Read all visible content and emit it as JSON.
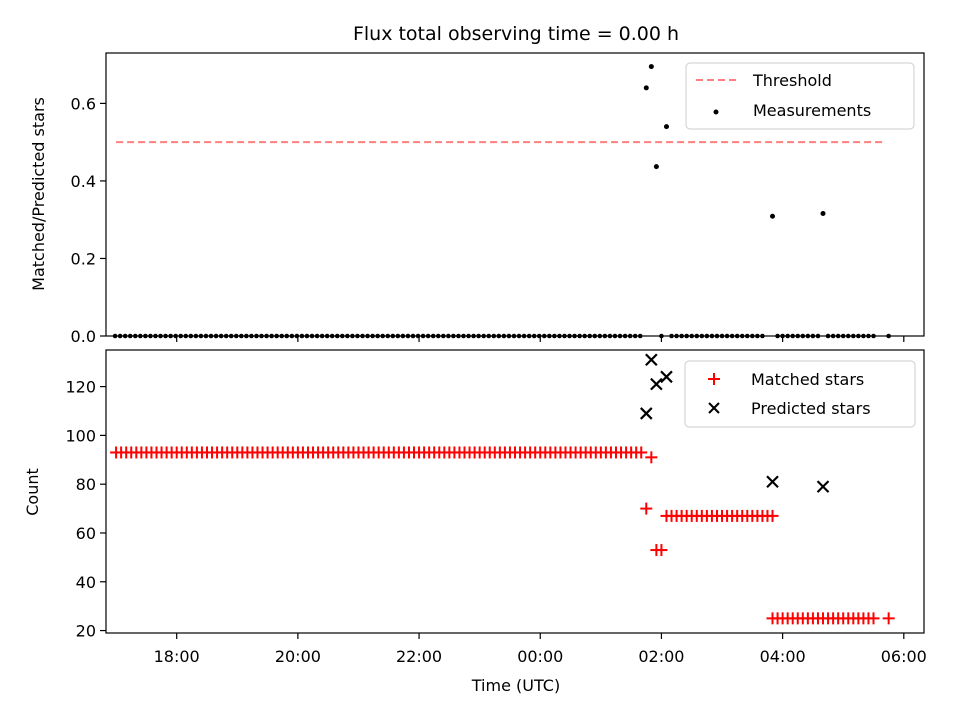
{
  "chart_data": [
    {
      "type": "scatter",
      "title": "Flux total observing time = 0.00 h",
      "xlabel": "",
      "ylabel": "Matched/Predicted stars",
      "xlim": [
        "16:50",
        "06:20"
      ],
      "ylim": [
        0,
        0.73
      ],
      "yticks": [
        0,
        0.2,
        0.4,
        0.6
      ],
      "ytick_labels": [
        "0.0",
        "0.2",
        "0.4",
        "0.6"
      ],
      "xticks": [
        "18:00",
        "20:00",
        "22:00",
        "00:00",
        "02:00",
        "04:00",
        "06:00"
      ],
      "legend": {
        "position": "top-right",
        "entries": [
          "Threshold",
          "Measurements"
        ]
      },
      "series": [
        {
          "name": "Threshold",
          "style": "dashed-line",
          "color": "#ff7f7f",
          "points": [
            {
              "x": "17:00",
              "y": 0.5
            },
            {
              "x": "05:40",
              "y": 0.5
            }
          ]
        },
        {
          "name": "Measurements",
          "style": "dot",
          "color": "#000000",
          "points": [
            {
              "x": "01:45",
              "y": 0.64
            },
            {
              "x": "01:50",
              "y": 0.695
            },
            {
              "x": "01:55",
              "y": 0.437
            },
            {
              "x": "02:05",
              "y": 0.54
            },
            {
              "x": "03:50",
              "y": 0.309
            },
            {
              "x": "04:40",
              "y": 0.316
            }
          ],
          "zero_runs": [
            {
              "start": "16:59",
              "end": "01:40",
              "step_minutes": 5
            },
            {
              "start": "02:00",
              "end": "02:00",
              "step_minutes": 5
            },
            {
              "start": "02:10",
              "end": "03:40",
              "step_minutes": 5
            },
            {
              "start": "03:55",
              "end": "04:35",
              "step_minutes": 5
            },
            {
              "start": "04:45",
              "end": "05:30",
              "step_minutes": 5
            },
            {
              "start": "05:45",
              "end": "05:45",
              "step_minutes": 5
            }
          ]
        }
      ]
    },
    {
      "type": "scatter",
      "title": "",
      "xlabel": "Time (UTC)",
      "ylabel": "Count",
      "xlim": [
        "16:50",
        "06:20"
      ],
      "ylim": [
        19,
        135
      ],
      "yticks": [
        20,
        40,
        60,
        80,
        100,
        120
      ],
      "ytick_labels": [
        "20",
        "40",
        "60",
        "80",
        "100",
        "120"
      ],
      "xticks": [
        "18:00",
        "20:00",
        "22:00",
        "00:00",
        "02:00",
        "04:00",
        "06:00"
      ],
      "legend": {
        "position": "top-right",
        "entries": [
          "Matched stars",
          "Predicted stars"
        ]
      },
      "series": [
        {
          "name": "Matched stars",
          "style": "plus",
          "color": "#ff0000",
          "points": [
            {
              "x": "01:45",
              "y": 70
            },
            {
              "x": "01:50",
              "y": 91
            },
            {
              "x": "01:55",
              "y": 53
            },
            {
              "x": "02:00",
              "y": 53
            }
          ],
          "runs": [
            {
              "start": "17:00",
              "end": "01:40",
              "step_minutes": 5,
              "y": 93
            },
            {
              "start": "02:05",
              "end": "03:50",
              "step_minutes": 5,
              "y": 67
            },
            {
              "start": "03:50",
              "end": "05:30",
              "step_minutes": 5,
              "y": 25
            },
            {
              "start": "05:45",
              "end": "05:45",
              "step_minutes": 5,
              "y": 25
            }
          ]
        },
        {
          "name": "Predicted stars",
          "style": "x",
          "color": "#000000",
          "points": [
            {
              "x": "01:45",
              "y": 109
            },
            {
              "x": "01:50",
              "y": 131
            },
            {
              "x": "01:55",
              "y": 121
            },
            {
              "x": "02:05",
              "y": 124
            },
            {
              "x": "03:50",
              "y": 81
            },
            {
              "x": "04:40",
              "y": 79
            }
          ]
        }
      ]
    }
  ]
}
